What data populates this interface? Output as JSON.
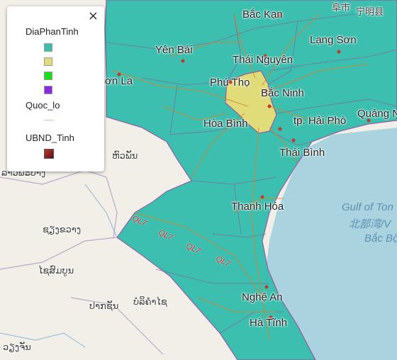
{
  "legend": {
    "layer1_title": "DiaPhanTinh",
    "layer1_colors": [
      "#3cbfae",
      "#e0dc7a",
      "#18e018",
      "#8a2be2"
    ],
    "layer2_title": "Quoc_lo",
    "layer2_color": "#f2b6a0",
    "layer3_title": "UBND_Tinh",
    "layer3_color": "#8b1a2a",
    "close_symbol": "×"
  },
  "places": {
    "bac_kan": "Bắc Kạn",
    "yen_bai": "Yên Bái",
    "thai_nguyen": "Thái Nguyên",
    "lang_son": "Lạng Sơn",
    "son_la": "Sơn La",
    "phu_tho": "Phú Thọ",
    "bac_ninh": "Bắc Ninh",
    "hoa_binh": "Hòa Bình",
    "hai_phong": "tp. Hải Phò",
    "quang_ninh": "Quảng Ninh",
    "thai_binh": "Thái Bình",
    "thanh_hoa": "Thanh Hóa",
    "nghe_an": "Nghệ An",
    "ha_tinh": "Hà Tĩnh"
  },
  "foreign_labels": {
    "top_right_1": "阜市",
    "top_right_2": "宁明县",
    "lao_1": "ຫົວພັນ",
    "lao_2": "ລາວພະບາງ",
    "lao_3": "ຊຽງຂວາງ",
    "lao_4": "ໄຊສົມບູນ",
    "lao_5": "ບໍລິຄຳໄຊ",
    "lao_6": "ປາກຊັນ",
    "lao_7": "ວຽງຈັນ"
  },
  "sea": {
    "gulf_line1": "Gulf of Ton",
    "gulf_line2": "北部湾/V",
    "gulf_line3": "Bắc Bộ"
  },
  "roads": [
    "QL7",
    "QL7",
    "QL7",
    "QL7"
  ],
  "colors": {
    "province_fill": "#3cbfae",
    "hanoi_fill": "#e0dc7a",
    "sea": "#aad3df",
    "land": "#f2efe9",
    "road": "#d9822b",
    "border": "#9b4a9b"
  }
}
